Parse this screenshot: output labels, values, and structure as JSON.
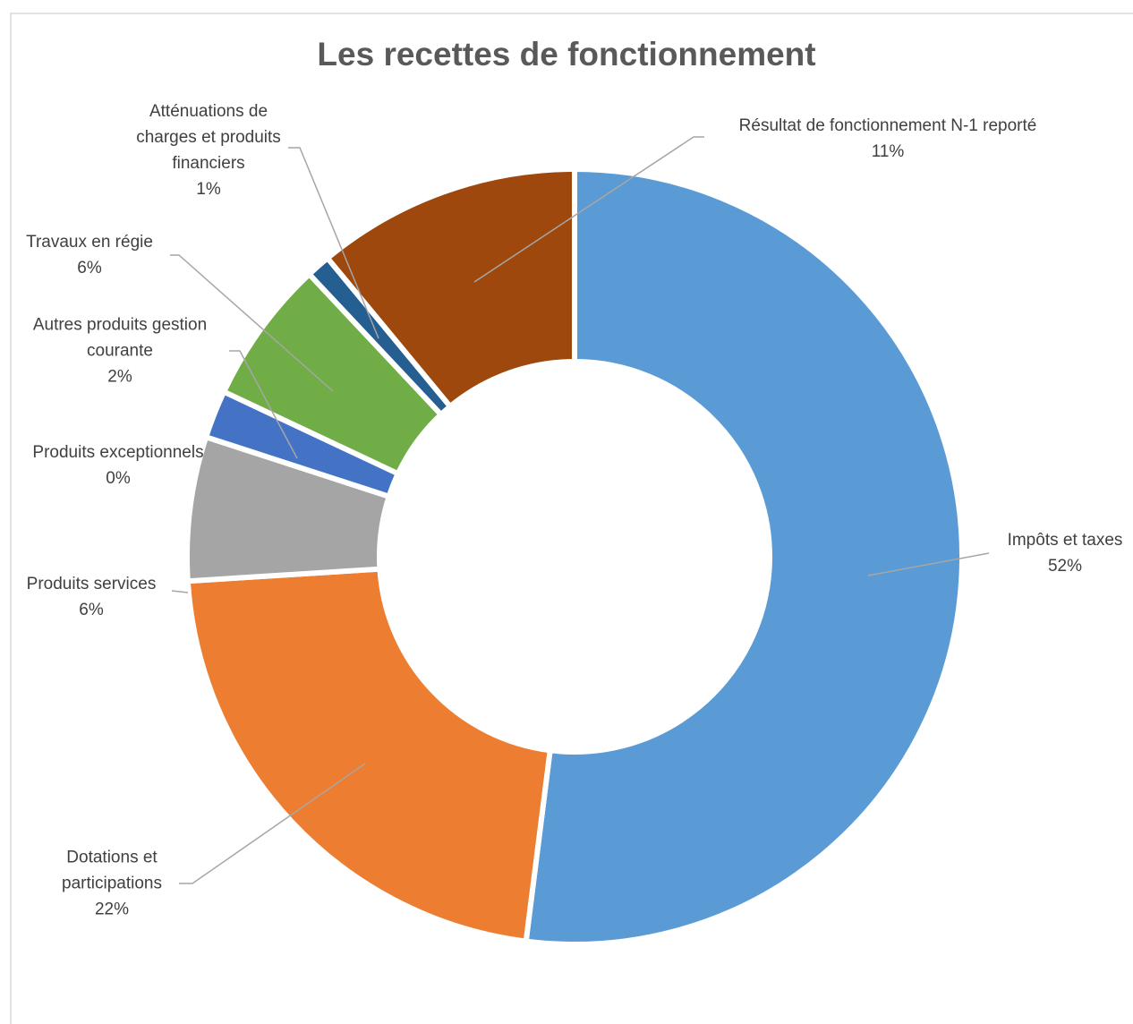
{
  "chart_data": {
    "type": "donut",
    "title": "Les recettes de fonctionnement",
    "categories": [
      "Impôts et taxes",
      "Dotations et participations",
      "Produits services",
      "Produits exceptionnels",
      "Autres produits gestion courante",
      "Travaux en régie",
      "Atténuations de charges et produits financiers",
      "Résultat de fonctionnement N-1 reporté"
    ],
    "values": [
      52,
      22,
      6,
      0,
      2,
      6,
      1,
      11
    ],
    "value_labels": [
      "52%",
      "22%",
      "6%",
      "0%",
      "2%",
      "6%",
      "1%",
      "11%"
    ],
    "colors": [
      "#5b9bd5",
      "#ed7d31",
      "#a5a5a5",
      "#ffc000",
      "#4472c4",
      "#70ad47",
      "#255e91",
      "#9e480e"
    ]
  }
}
